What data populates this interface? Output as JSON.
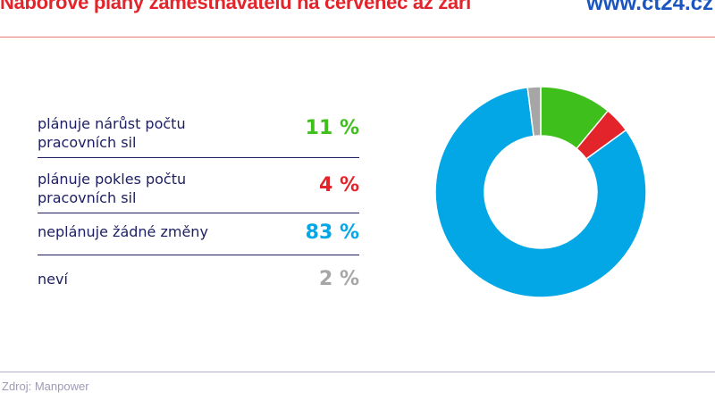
{
  "header": {
    "title": "Náborové plány zaměstnavatelů na červenec až září",
    "brand": "www.ct24.cz"
  },
  "footer": {
    "source": "Zdroj: Manpower"
  },
  "chart_data": {
    "type": "pie",
    "donut": true,
    "categories": [
      "plánuje nárůst počtu pracovních sil",
      "plánuje pokles počtu pracovních sil",
      "neplánuje žádné změny",
      "neví"
    ],
    "values": [
      11,
      4,
      83,
      2
    ],
    "labels": [
      "11 %",
      "4 %",
      "83 %",
      "2 %"
    ],
    "colors": [
      "#3fbf1c",
      "#e4242b",
      "#04a7e6",
      "#a6a6a6"
    ]
  }
}
